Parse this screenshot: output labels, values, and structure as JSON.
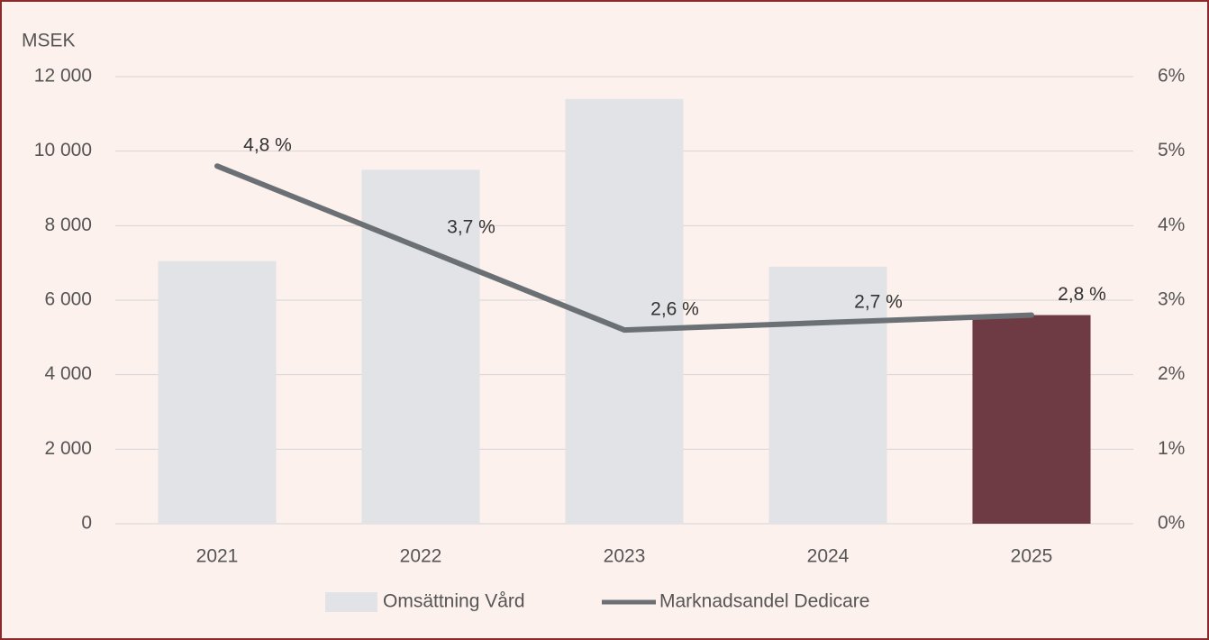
{
  "chart_data": {
    "type": "bar_line",
    "y_unit_label": "MSEK",
    "categories": [
      "2021",
      "2022",
      "2023",
      "2024",
      "2025"
    ],
    "series": [
      {
        "name": "Omsättning Vård",
        "type": "bar",
        "color": "#e1e3e6",
        "colors": [
          "#e1e3e6",
          "#e1e3e6",
          "#e1e3e6",
          "#e1e3e6",
          "#6e3a43"
        ],
        "values": [
          7050,
          9500,
          11400,
          6900,
          5600
        ]
      },
      {
        "name": "Marknadsandel Dedicare",
        "type": "line",
        "axis": "y2",
        "color": "#6b7075",
        "values": [
          4.8,
          3.7,
          2.6,
          2.7,
          2.8
        ],
        "value_labels": [
          "4,8 %",
          "3,7 %",
          "2,6 %",
          "2,7 %",
          "2,8 %"
        ]
      }
    ],
    "ylim": [
      0,
      12000
    ],
    "yticks": [
      0,
      {
        "value": 2000,
        "label": "2 000"
      },
      {
        "value": 4000,
        "label": "4 000"
      },
      {
        "value": 6000,
        "label": "6 000"
      },
      {
        "value": 8000,
        "label": "8 000"
      },
      {
        "value": 10000,
        "label": "10 000"
      },
      {
        "value": 12000,
        "label": "12 000"
      }
    ],
    "y2lim": [
      0,
      6
    ],
    "y2ticks": [
      {
        "value": 0,
        "label": "0%"
      },
      {
        "value": 1,
        "label": "1%"
      },
      {
        "value": 2,
        "label": "2%"
      },
      {
        "value": 3,
        "label": "3%"
      },
      {
        "value": 4,
        "label": "4%"
      },
      {
        "value": 5,
        "label": "5%"
      },
      {
        "value": 6,
        "label": "6%"
      }
    ],
    "grid": true
  }
}
